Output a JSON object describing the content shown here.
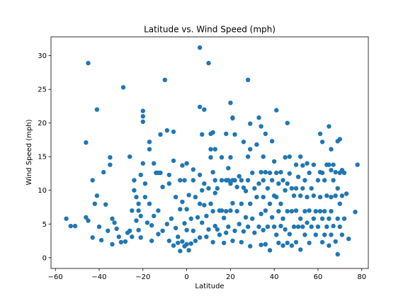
{
  "chart_data": {
    "type": "scatter",
    "title": "Latitude vs. Wind Speed (mph)",
    "xlabel": "Latitude",
    "ylabel": "Wind Speed (mph)",
    "xlim": [
      -62,
      83
    ],
    "ylim": [
      -1.6,
      32.8
    ],
    "xticks": [
      -60,
      -40,
      -20,
      0,
      20,
      40,
      60,
      80
    ],
    "yticks": [
      0,
      5,
      10,
      15,
      20,
      25,
      30
    ],
    "grid": false,
    "legend": "none",
    "marker_color": "#1f77b4",
    "points": [
      [
        -55,
        5.8
      ],
      [
        -53,
        4.7
      ],
      [
        -51,
        4.7
      ],
      [
        -46,
        17.1
      ],
      [
        -45,
        28.9
      ],
      [
        -46,
        6.0
      ],
      [
        -45,
        5.5
      ],
      [
        -43,
        11.5
      ],
      [
        -43,
        3.0
      ],
      [
        -42,
        8.0
      ],
      [
        -41,
        22.0
      ],
      [
        -41,
        9.2
      ],
      [
        -40,
        4.6
      ],
      [
        -39,
        2.6
      ],
      [
        -38,
        12.7
      ],
      [
        -37,
        7.9
      ],
      [
        -36,
        4.0
      ],
      [
        -35,
        13.8
      ],
      [
        -35,
        14.9
      ],
      [
        -34,
        5.8
      ],
      [
        -34,
        2.0
      ],
      [
        -33,
        5.2
      ],
      [
        -32,
        4.3
      ],
      [
        -31,
        3.1
      ],
      [
        -30,
        2.3
      ],
      [
        -29,
        25.3
      ],
      [
        -28,
        2.4
      ],
      [
        -27,
        3.7
      ],
      [
        -26,
        4.0
      ],
      [
        -26,
        15.0
      ],
      [
        -25,
        3.1
      ],
      [
        -25,
        7.0
      ],
      [
        -24,
        11.5
      ],
      [
        -24,
        10.0
      ],
      [
        -23,
        9.0
      ],
      [
        -23,
        5.5
      ],
      [
        -22,
        8.0
      ],
      [
        -22,
        4.1
      ],
      [
        -22,
        7.0
      ],
      [
        -21,
        12.3
      ],
      [
        -21,
        6.2
      ],
      [
        -21,
        3.0
      ],
      [
        -20,
        21.8
      ],
      [
        -20,
        20.2
      ],
      [
        -20,
        21.0
      ],
      [
        -20,
        14.0
      ],
      [
        -19,
        9.0
      ],
      [
        -19,
        11.0
      ],
      [
        -18,
        5.2
      ],
      [
        -17,
        17.2
      ],
      [
        -17,
        16.1
      ],
      [
        -17,
        8.0
      ],
      [
        -16,
        4.8
      ],
      [
        -16,
        2.5
      ],
      [
        -15,
        14.0
      ],
      [
        -15,
        6.2
      ],
      [
        -14,
        12.6
      ],
      [
        -13,
        12.6
      ],
      [
        -13,
        7.0
      ],
      [
        -13,
        3.5
      ],
      [
        -12,
        18.3
      ],
      [
        -12,
        12.6
      ],
      [
        -11,
        10.5
      ],
      [
        -11,
        4.0
      ],
      [
        -10,
        26.4
      ],
      [
        -9,
        18.9
      ],
      [
        -9,
        5.0
      ],
      [
        -8,
        12.3
      ],
      [
        -8,
        11.0
      ],
      [
        -8,
        2.5
      ],
      [
        -7,
        5.8
      ],
      [
        -6,
        18.7
      ],
      [
        -6,
        14.4
      ],
      [
        -6,
        1.8
      ],
      [
        -5,
        9.0
      ],
      [
        -5,
        4.4
      ],
      [
        -4,
        3.1
      ],
      [
        -4,
        2.2
      ],
      [
        -3,
        11.5
      ],
      [
        -3,
        7.2
      ],
      [
        -3,
        1.0
      ],
      [
        -2,
        13.7
      ],
      [
        -2,
        8.3
      ],
      [
        -2,
        2.4
      ],
      [
        -1,
        11.5
      ],
      [
        -1,
        5.1
      ],
      [
        -1,
        1.7
      ],
      [
        0,
        14.0
      ],
      [
        0,
        7.2
      ],
      [
        0,
        4.1
      ],
      [
        0,
        2.0
      ],
      [
        1,
        9.3
      ],
      [
        1,
        1.1
      ],
      [
        2,
        2.1
      ],
      [
        2,
        5.8
      ],
      [
        3,
        13.1
      ],
      [
        3,
        11.5
      ],
      [
        3,
        4.0
      ],
      [
        4,
        9.0
      ],
      [
        4,
        2.5
      ],
      [
        5,
        6.0
      ],
      [
        6,
        31.2
      ],
      [
        6,
        22.4
      ],
      [
        6,
        12.3
      ],
      [
        6,
        8.0
      ],
      [
        6,
        3.0
      ],
      [
        7,
        18.3
      ],
      [
        7,
        10.0
      ],
      [
        7,
        5.2
      ],
      [
        8,
        22.0
      ],
      [
        8,
        11.0
      ],
      [
        8,
        7.8
      ],
      [
        9,
        6.2
      ],
      [
        9,
        3.1
      ],
      [
        10,
        28.9
      ],
      [
        10,
        10.3
      ],
      [
        10,
        4.2
      ],
      [
        11,
        18.4
      ],
      [
        11,
        16.1
      ],
      [
        11,
        14.9
      ],
      [
        11,
        8.0
      ],
      [
        12,
        18.6
      ],
      [
        12,
        12.7
      ],
      [
        12,
        6.9
      ],
      [
        12,
        2.3
      ],
      [
        13,
        16.1
      ],
      [
        13,
        11.5
      ],
      [
        13,
        9.6
      ],
      [
        13,
        4.7
      ],
      [
        14,
        10.3
      ],
      [
        14,
        4.2
      ],
      [
        15,
        7.0
      ],
      [
        15,
        3.4
      ],
      [
        16,
        14.9
      ],
      [
        16,
        11.5
      ],
      [
        16,
        7.0
      ],
      [
        17,
        5.9
      ],
      [
        17,
        2.2
      ],
      [
        18,
        18.4
      ],
      [
        18,
        11.5
      ],
      [
        18,
        6.9
      ],
      [
        18,
        3.7
      ],
      [
        19,
        13.3
      ],
      [
        19,
        11.5
      ],
      [
        19,
        4.6
      ],
      [
        20,
        23.0
      ],
      [
        20,
        14.9
      ],
      [
        20,
        11.0
      ],
      [
        20,
        7.0
      ],
      [
        21,
        20.8
      ],
      [
        21,
        20.7
      ],
      [
        21,
        11.5
      ],
      [
        21,
        8.1
      ],
      [
        21,
        2.5
      ],
      [
        22,
        18.3
      ],
      [
        22,
        11.5
      ],
      [
        22,
        4.0
      ],
      [
        23,
        10.5
      ],
      [
        23,
        6.9
      ],
      [
        24,
        12.1
      ],
      [
        24,
        5.0
      ],
      [
        25,
        11.5
      ],
      [
        25,
        8.0
      ],
      [
        25,
        2.3
      ],
      [
        26,
        17.2
      ],
      [
        26,
        10.4
      ],
      [
        26,
        3.9
      ],
      [
        27,
        9.9
      ],
      [
        27,
        6.0
      ],
      [
        28,
        26.4
      ],
      [
        28,
        15.0
      ],
      [
        28,
        11.5
      ],
      [
        28,
        4.6
      ],
      [
        29,
        19.9
      ],
      [
        29,
        16.1
      ],
      [
        29,
        8.0
      ],
      [
        29,
        1.7
      ],
      [
        30,
        12.6
      ],
      [
        30,
        5.8
      ],
      [
        31,
        10.3
      ],
      [
        31,
        3.7
      ],
      [
        32,
        16.8
      ],
      [
        32,
        9.0
      ],
      [
        33,
        20.8
      ],
      [
        33,
        11.0
      ],
      [
        33,
        4.6
      ],
      [
        34,
        19.5
      ],
      [
        34,
        12.7
      ],
      [
        34,
        6.5
      ],
      [
        34,
        1.9
      ],
      [
        35,
        15.0
      ],
      [
        35,
        11.5
      ],
      [
        35,
        9.0
      ],
      [
        35,
        4.1
      ],
      [
        36,
        18.4
      ],
      [
        36,
        12.7
      ],
      [
        36,
        7.0
      ],
      [
        36,
        2.0
      ],
      [
        37,
        10.3
      ],
      [
        37,
        4.6
      ],
      [
        38,
        12.6
      ],
      [
        38,
        8.0
      ],
      [
        38,
        1.1
      ],
      [
        39,
        17.3
      ],
      [
        39,
        11.5
      ],
      [
        39,
        6.0
      ],
      [
        40,
        14.3
      ],
      [
        40,
        9.2
      ],
      [
        40,
        4.6
      ],
      [
        41,
        21.9
      ],
      [
        41,
        12.6
      ],
      [
        41,
        9.0
      ],
      [
        41,
        3.4
      ],
      [
        42,
        11.0
      ],
      [
        42,
        6.9
      ],
      [
        42,
        2.2
      ],
      [
        43,
        12.7
      ],
      [
        43,
        8.0
      ],
      [
        43,
        4.7
      ],
      [
        44,
        11.5
      ],
      [
        44,
        5.8
      ],
      [
        44,
        1.8
      ],
      [
        45,
        14.9
      ],
      [
        45,
        10.0
      ],
      [
        45,
        4.2
      ],
      [
        46,
        20.0
      ],
      [
        46,
        11.0
      ],
      [
        46,
        6.9
      ],
      [
        46,
        2.2
      ],
      [
        47,
        15.0
      ],
      [
        47,
        12.5
      ],
      [
        47,
        3.5
      ],
      [
        48,
        10.3
      ],
      [
        48,
        6.9
      ],
      [
        48,
        1.8
      ],
      [
        49,
        9.2
      ],
      [
        49,
        4.6
      ],
      [
        50,
        13.8
      ],
      [
        50,
        10.3
      ],
      [
        50,
        7.0
      ],
      [
        50,
        2.3
      ],
      [
        51,
        12.0
      ],
      [
        51,
        4.6
      ],
      [
        52,
        15.0
      ],
      [
        52,
        9.2
      ],
      [
        52,
        5.8
      ],
      [
        52,
        1.2
      ],
      [
        53,
        13.7
      ],
      [
        53,
        10.3
      ],
      [
        53,
        4.6
      ],
      [
        54,
        11.5
      ],
      [
        54,
        6.9
      ],
      [
        54,
        3.4
      ],
      [
        55,
        14.0
      ],
      [
        55,
        9.0
      ],
      [
        55,
        5.2
      ],
      [
        56,
        12.6
      ],
      [
        56,
        7.0
      ],
      [
        56,
        2.2
      ],
      [
        57,
        10.3
      ],
      [
        57,
        4.6
      ],
      [
        58,
        13.8
      ],
      [
        58,
        9.2
      ],
      [
        58,
        5.8
      ],
      [
        59,
        6.9
      ],
      [
        59,
        3.4
      ],
      [
        60,
        11.5
      ],
      [
        60,
        4.6
      ],
      [
        61,
        18.4
      ],
      [
        61,
        12.7
      ],
      [
        61,
        9.0
      ],
      [
        61,
        6.9
      ],
      [
        62,
        17.2
      ],
      [
        62,
        12.6
      ],
      [
        62,
        5.8
      ],
      [
        62,
        2.3
      ],
      [
        63,
        11.5
      ],
      [
        63,
        6.9
      ],
      [
        63,
        3.4
      ],
      [
        64,
        13.8
      ],
      [
        64,
        9.2
      ],
      [
        64,
        4.6
      ],
      [
        65,
        19.5
      ],
      [
        65,
        13.8
      ],
      [
        65,
        5.8
      ],
      [
        65,
        1.8
      ],
      [
        66,
        16.1
      ],
      [
        66,
        13.0
      ],
      [
        66,
        9.0
      ],
      [
        66,
        6.9
      ],
      [
        66,
        3.4
      ],
      [
        67,
        13.8
      ],
      [
        67,
        11.5
      ],
      [
        67,
        4.7
      ],
      [
        68,
        12.7
      ],
      [
        68,
        9.2
      ],
      [
        68,
        2.4
      ],
      [
        69,
        17.3
      ],
      [
        69,
        10.3
      ],
      [
        69,
        5.8
      ],
      [
        69,
        0.5
      ],
      [
        70,
        17.6
      ],
      [
        70,
        12.6
      ],
      [
        70,
        8.0
      ],
      [
        70,
        4.6
      ],
      [
        71,
        13.0
      ],
      [
        71,
        9.2
      ],
      [
        71,
        3.4
      ],
      [
        72,
        12.6
      ],
      [
        72,
        5.8
      ],
      [
        73,
        9.5
      ],
      [
        74,
        2.8
      ],
      [
        77,
        6.8
      ],
      [
        78,
        13.8
      ]
    ]
  }
}
